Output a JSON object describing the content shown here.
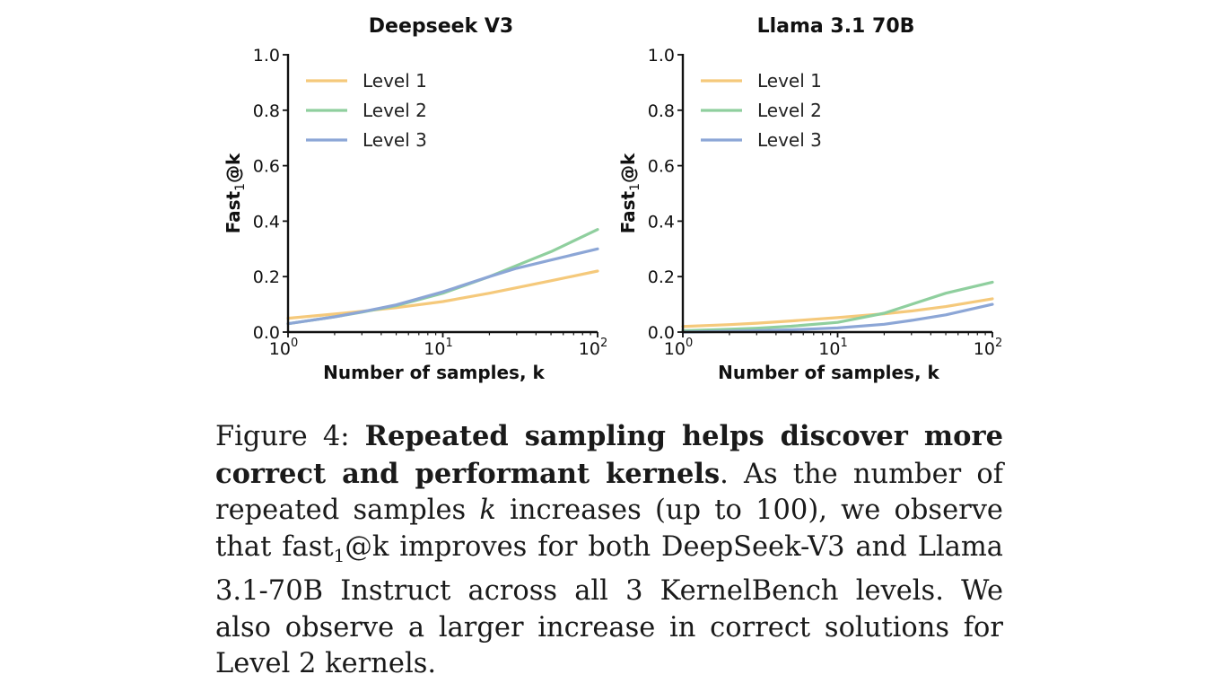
{
  "chart_data": [
    {
      "type": "line",
      "title": "Deepseek V3",
      "xlabel": "Number of samples, k",
      "ylabel_main": "Fast",
      "ylabel_sub": "1",
      "ylabel_suffix": "@k",
      "xscale": "log",
      "xlim": [
        1,
        100
      ],
      "ylim": [
        0,
        1
      ],
      "yticks": [
        "0.0",
        "0.2",
        "0.4",
        "0.6",
        "0.8",
        "1.0"
      ],
      "xticks": [
        {
          "base": "10",
          "exp": "0"
        },
        {
          "base": "10",
          "exp": "1"
        },
        {
          "base": "10",
          "exp": "2"
        }
      ],
      "grid": false,
      "legend_position": "top-left",
      "series": [
        {
          "name": "Level 1",
          "color": "#f5c97b",
          "x": [
            1,
            2,
            3,
            5,
            10,
            20,
            30,
            50,
            100
          ],
          "y": [
            0.05,
            0.065,
            0.075,
            0.088,
            0.11,
            0.14,
            0.16,
            0.185,
            0.22
          ]
        },
        {
          "name": "Level 2",
          "color": "#8fcf9e",
          "x": [
            1,
            2,
            3,
            5,
            10,
            20,
            30,
            50,
            100
          ],
          "y": [
            0.03,
            0.055,
            0.072,
            0.095,
            0.14,
            0.2,
            0.24,
            0.29,
            0.37
          ]
        },
        {
          "name": "Level 3",
          "color": "#8ca6d6",
          "x": [
            1,
            2,
            3,
            5,
            10,
            20,
            30,
            50,
            100
          ],
          "y": [
            0.03,
            0.055,
            0.073,
            0.098,
            0.145,
            0.2,
            0.23,
            0.26,
            0.3
          ]
        }
      ]
    },
    {
      "type": "line",
      "title": "Llama 3.1 70B",
      "xlabel": "Number of samples, k",
      "ylabel_main": "Fast",
      "ylabel_sub": "1",
      "ylabel_suffix": "@k",
      "xscale": "log",
      "xlim": [
        1,
        100
      ],
      "ylim": [
        0,
        1
      ],
      "yticks": [
        "0.0",
        "0.2",
        "0.4",
        "0.6",
        "0.8",
        "1.0"
      ],
      "xticks": [
        {
          "base": "10",
          "exp": "0"
        },
        {
          "base": "10",
          "exp": "1"
        },
        {
          "base": "10",
          "exp": "2"
        }
      ],
      "grid": false,
      "legend_position": "top-left",
      "series": [
        {
          "name": "Level 1",
          "color": "#f5c97b",
          "x": [
            1,
            2,
            3,
            5,
            10,
            20,
            30,
            50,
            100
          ],
          "y": [
            0.02,
            0.027,
            0.032,
            0.04,
            0.052,
            0.066,
            0.076,
            0.092,
            0.12
          ]
        },
        {
          "name": "Level 2",
          "color": "#8fcf9e",
          "x": [
            1,
            2,
            3,
            5,
            10,
            20,
            30,
            50,
            100
          ],
          "y": [
            0.005,
            0.01,
            0.014,
            0.021,
            0.035,
            0.068,
            0.1,
            0.14,
            0.18
          ]
        },
        {
          "name": "Level 3",
          "color": "#8ca6d6",
          "x": [
            1,
            2,
            3,
            5,
            10,
            20,
            30,
            50,
            100
          ],
          "y": [
            0.0,
            0.003,
            0.005,
            0.008,
            0.015,
            0.028,
            0.042,
            0.062,
            0.1
          ]
        }
      ]
    }
  ],
  "caption": {
    "label": "Figure 4:",
    "bold": "Repeated sampling helps discover more correct and performant kernels",
    "text1": ". As the number of repeated samples ",
    "var_k": "k",
    "text2": " increases (up to 100), we observe that fast",
    "sub": "1",
    "text3": "@k improves for both DeepSeek-V3 and Llama 3.1-70B Instruct across all 3 KernelBench levels. We also observe a larger increase in correct solutions for Level 2 kernels."
  }
}
